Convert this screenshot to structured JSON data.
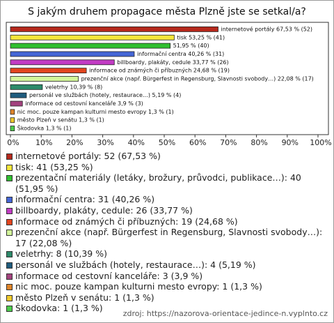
{
  "chart_data": {
    "type": "bar",
    "orientation": "horizontal",
    "title": "S jakým druhem propagace města Plzně jste se setkal/a?",
    "values": [
      67.53,
      53.25,
      51.95,
      40.26,
      33.77,
      24.68,
      22.08,
      10.39,
      5.19,
      3.9,
      1.3,
      1.3,
      1.3
    ],
    "value_labels": [
      "internetové portály 67,53 % (52)",
      "tisk 53,25 % (41)",
      "51,95 % (40)",
      "informační centra 40,26 % (31)",
      "billboardy, plakáty, cedule 33,77 % (26)",
      "informace od známých či příbuzných 24,68 % (19)",
      "prezenční akce (např. Bürgerfest in Regensburg, Slavnosti svobody…) 22,08 % (17)",
      "veletrhy 10,39 % (8)",
      "personál ve službách (hotely, restaurace…) 5,19 % (4)",
      "informace od cestovní kanceláře 3,9 % (3)",
      "nic moc. pouze kampan kulturni mesto evropy 1,3 % (1)",
      "město Plzeň v senátu 1,3 % (1)",
      "Škodovka 1,3 % (1)"
    ],
    "legend_labels": [
      "internetové portály: 52 (67,53 %)",
      "tisk: 41 (53,25 %)",
      "prezentační materiály (letáky, brožury, průvodci, publikace…): 40 (51,95 %)",
      "informační centra: 31 (40,26 %)",
      "billboardy, plakáty, cedule: 26 (33,77 %)",
      "informace od známých či příbuzných: 19 (24,68 %)",
      "prezenční akce (např. Bürgerfest in Regensburg, Slavnosti svobody…): 17 (22,08 %)",
      "veletrhy: 8 (10,39 %)",
      "personál ve službách (hotely, restaurace…): 4 (5,19 %)",
      "informace od cestovní kanceláře: 3 (3,9 %)",
      "nic moc. pouze kampan kulturni mesto evropy: 1 (1,3 %)",
      "město Plzeň v senátu: 1 (1,3 %)",
      "Škodovka: 1 (1,3 %)"
    ],
    "colors": [
      "#b5281c",
      "#f5e63a",
      "#2fbf2f",
      "#4466d6",
      "#c23cc4",
      "#e2451f",
      "#d2f59a",
      "#2d8a6a",
      "#1f5b7d",
      "#a3427e",
      "#e0852a",
      "#efc92b",
      "#4ccc4c"
    ],
    "xlim": [
      0,
      100
    ],
    "xticks": [
      {
        "value": 0,
        "label": "0%"
      },
      {
        "value": 10,
        "label": "10%"
      },
      {
        "value": 20,
        "label": "20%"
      },
      {
        "value": 30,
        "label": "30%"
      },
      {
        "value": 40,
        "label": "40%"
      },
      {
        "value": 50,
        "label": "50%"
      },
      {
        "value": 60,
        "label": "60%"
      },
      {
        "value": 70,
        "label": "70%"
      },
      {
        "value": 80,
        "label": "80%"
      },
      {
        "value": 90,
        "label": "90%"
      },
      {
        "value": 100,
        "label": "100%"
      }
    ],
    "source": "zdroj: https://nazorova-orientace-jedince-n.vyplnto.cz"
  }
}
